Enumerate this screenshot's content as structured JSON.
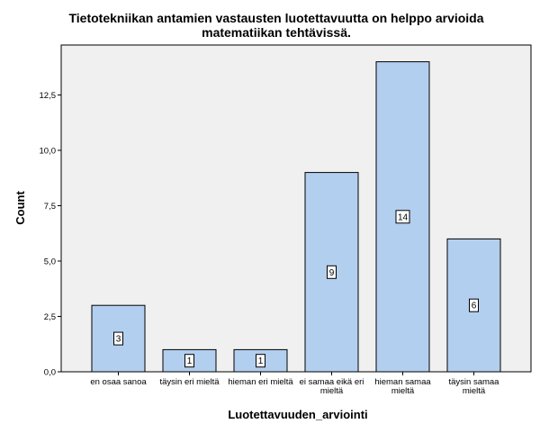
{
  "chart_data": {
    "type": "bar",
    "title": [
      "Tietotekniikan antamien vastausten luotettavuutta on helppo arvioida",
      "matematiikan tehtävissä."
    ],
    "xlabel": "Luotettavuuden_arviointi",
    "ylabel": "Count",
    "categories": [
      [
        "en osaa sanoa"
      ],
      [
        "täysin eri mieltä"
      ],
      [
        "hieman eri mieltä"
      ],
      [
        "ei samaa eikä eri",
        "mieltä"
      ],
      [
        "hieman samaa",
        "mieltä"
      ],
      [
        "täysin samaa",
        "mieltä"
      ]
    ],
    "values": [
      3,
      1,
      1,
      9,
      14,
      6
    ],
    "data_labels": [
      "3",
      "1",
      "1",
      "9",
      "14",
      "6"
    ],
    "ylim": [
      0,
      14.8
    ],
    "yticks": [
      0,
      2.5,
      5,
      7.5,
      10,
      12.5
    ],
    "ytick_labels": [
      "0,0",
      "2,5",
      "5,0",
      "7,5",
      "10,0",
      "12,5"
    ],
    "colors": {
      "bar_fill": "#b3cfef",
      "bar_stroke": "#000000",
      "plot_background": "#f0f0f0",
      "data_label_box": "#ffffff"
    },
    "grid": false,
    "legend": "none"
  }
}
